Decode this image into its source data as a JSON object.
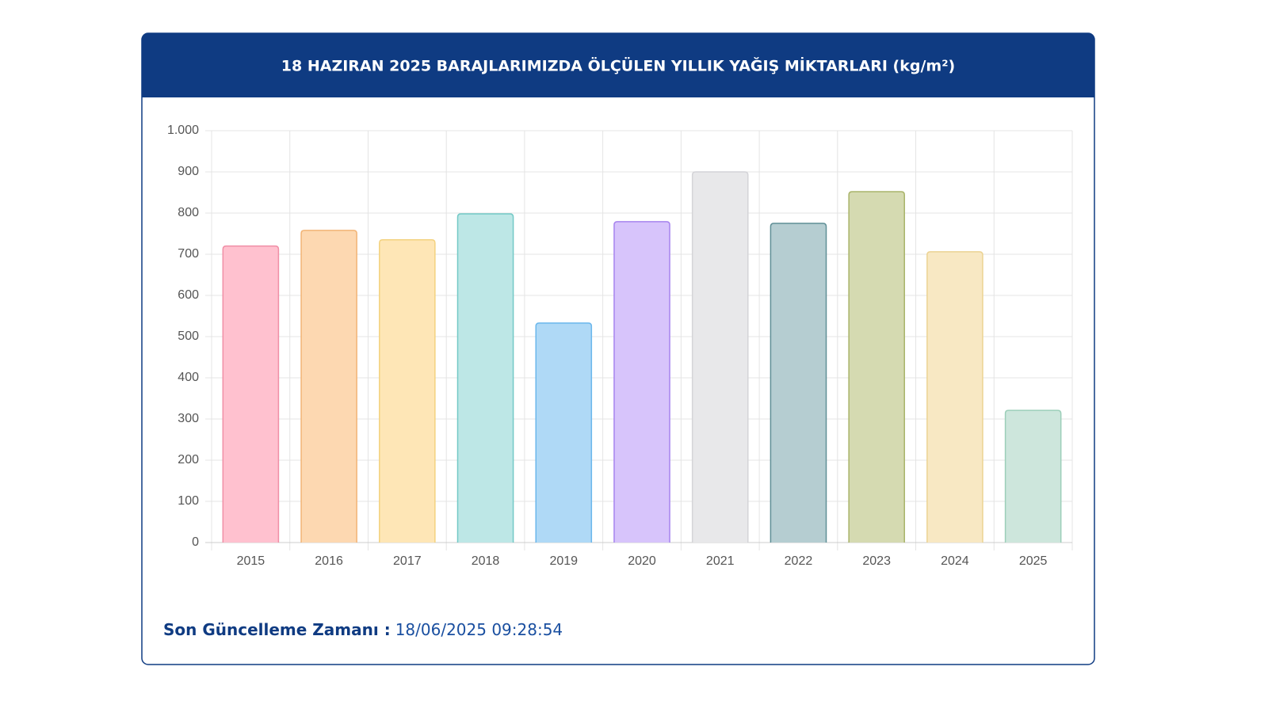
{
  "chart_data": {
    "type": "bar",
    "title": "18 HAZIRAN 2025 BARAJLARIMIZDA ÖLÇÜLEN YILLIK YAĞIŞ MİKTARLARI (kg/m²)",
    "categories": [
      "2015",
      "2016",
      "2017",
      "2018",
      "2019",
      "2020",
      "2021",
      "2022",
      "2023",
      "2024",
      "2025"
    ],
    "values": [
      720,
      758,
      735,
      798,
      533,
      779,
      900,
      775,
      852,
      706,
      321
    ],
    "colors": [
      "#ffc1cf",
      "#fdd8b1",
      "#fee6b6",
      "#bde7e6",
      "#afd9f6",
      "#d7c4fb",
      "#e8e8ea",
      "#b5cdd1",
      "#d5dab1",
      "#f8e8c3",
      "#cde6dc"
    ],
    "border_colors": [
      "#f08fa6",
      "#f2b476",
      "#f3d27f",
      "#73c9c6",
      "#6bb7ec",
      "#a784ee",
      "#d4d4d8",
      "#5f8f96",
      "#a9b46a",
      "#ecd393",
      "#9ccfb9"
    ],
    "ylim": [
      0,
      1000
    ],
    "yticks": [
      0,
      100,
      200,
      300,
      400,
      500,
      600,
      700,
      800,
      900,
      {
        "value": 1000,
        "label": "1.000"
      }
    ],
    "grid": true
  },
  "footer": {
    "label": "Son Güncelleme Zamanı :",
    "value": "18/06/2025 09:28:54"
  }
}
